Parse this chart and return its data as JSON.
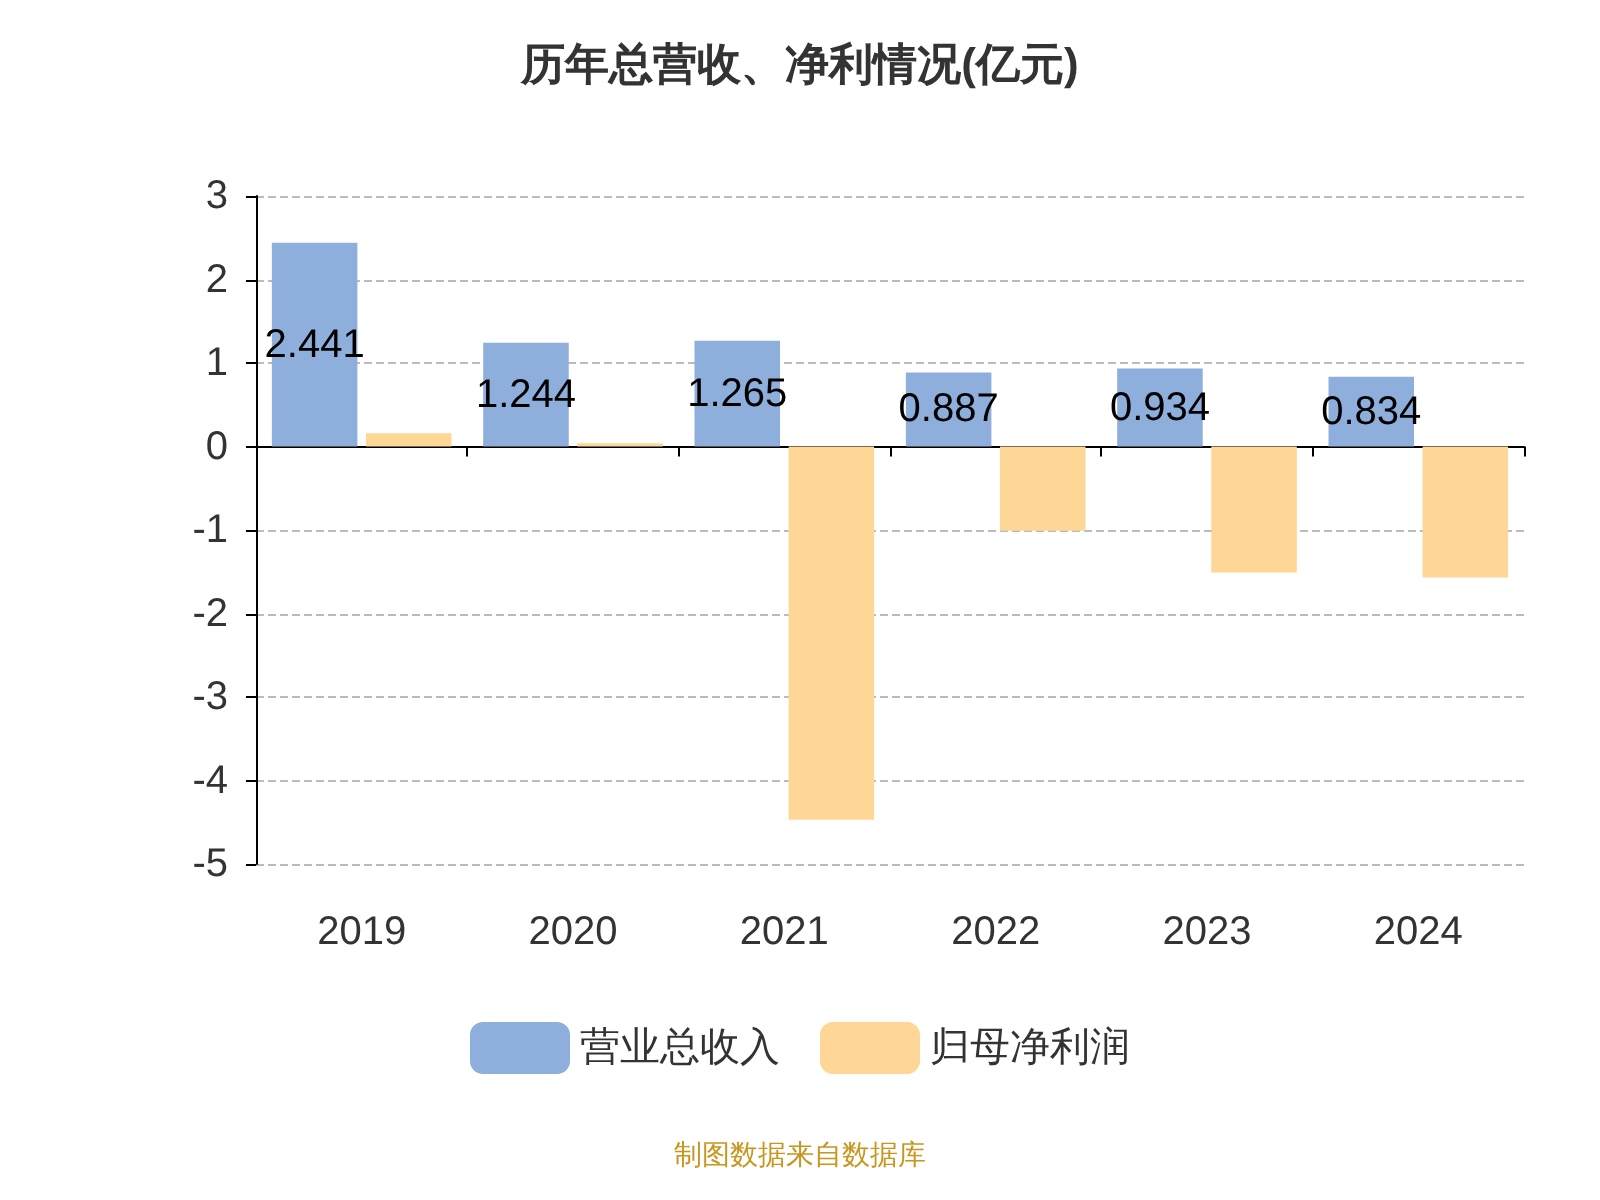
{
  "chart_data": {
    "type": "bar",
    "title": "历年总营收、净利情况(亿元)",
    "categories": [
      "2019",
      "2020",
      "2021",
      "2022",
      "2023",
      "2024"
    ],
    "series": [
      {
        "name": "营业总收入",
        "color": "#8eaedb",
        "values": [
          2.441,
          1.244,
          1.265,
          0.887,
          0.934,
          0.834
        ],
        "value_labels": [
          "2.441",
          "1.244",
          "1.265",
          "0.887",
          "0.934",
          "0.834"
        ]
      },
      {
        "name": "归母净利润",
        "color": "#fed797",
        "values": [
          0.16,
          0.04,
          -4.47,
          -1.01,
          -1.51,
          -1.57
        ]
      }
    ],
    "ylim": [
      -5,
      3
    ],
    "yticks": [
      -5,
      -4,
      -3,
      -2,
      -1,
      0,
      1,
      2,
      3
    ],
    "grid": "y",
    "legend": "bottom",
    "annotations": [
      "制图数据来自数据库"
    ]
  }
}
